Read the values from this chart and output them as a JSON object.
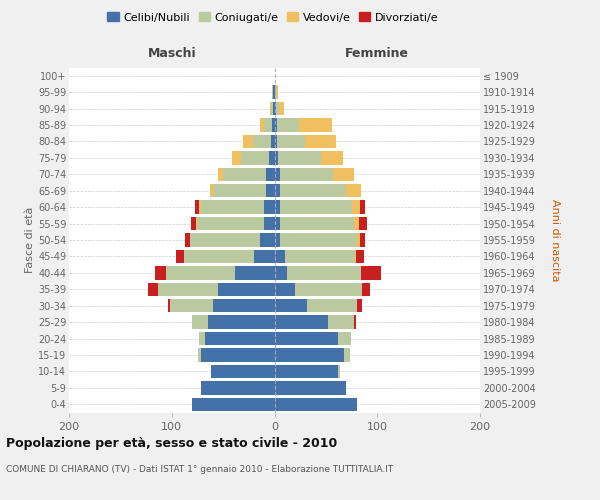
{
  "age_groups": [
    "0-4",
    "5-9",
    "10-14",
    "15-19",
    "20-24",
    "25-29",
    "30-34",
    "35-39",
    "40-44",
    "45-49",
    "50-54",
    "55-59",
    "60-64",
    "65-69",
    "70-74",
    "75-79",
    "80-84",
    "85-89",
    "90-94",
    "95-99",
    "100+"
  ],
  "birth_years": [
    "2005-2009",
    "2000-2004",
    "1995-1999",
    "1990-1994",
    "1985-1989",
    "1980-1984",
    "1975-1979",
    "1970-1974",
    "1965-1969",
    "1960-1964",
    "1955-1959",
    "1950-1954",
    "1945-1949",
    "1940-1944",
    "1935-1939",
    "1930-1934",
    "1925-1929",
    "1920-1924",
    "1915-1919",
    "1910-1914",
    "≤ 1909"
  ],
  "maschi": {
    "celibi": [
      80,
      72,
      62,
      72,
      68,
      65,
      60,
      55,
      38,
      20,
      14,
      10,
      10,
      8,
      8,
      5,
      3,
      2,
      1,
      1,
      0
    ],
    "coniugati": [
      0,
      0,
      0,
      2,
      5,
      15,
      42,
      58,
      68,
      68,
      68,
      65,
      62,
      52,
      42,
      28,
      18,
      8,
      2,
      1,
      0
    ],
    "vedovi": [
      0,
      0,
      0,
      0,
      0,
      0,
      0,
      0,
      0,
      0,
      0,
      1,
      1,
      3,
      5,
      8,
      10,
      4,
      1,
      0,
      0
    ],
    "divorziati": [
      0,
      0,
      0,
      0,
      0,
      0,
      2,
      10,
      10,
      8,
      5,
      5,
      4,
      0,
      0,
      0,
      0,
      0,
      0,
      0,
      0
    ]
  },
  "femmine": {
    "nubili": [
      80,
      70,
      62,
      68,
      62,
      52,
      32,
      20,
      12,
      10,
      5,
      5,
      5,
      5,
      5,
      3,
      2,
      2,
      1,
      0,
      0
    ],
    "coniugate": [
      0,
      0,
      2,
      5,
      12,
      25,
      48,
      65,
      72,
      68,
      75,
      72,
      70,
      65,
      52,
      42,
      28,
      22,
      3,
      1,
      0
    ],
    "vedove": [
      0,
      0,
      0,
      0,
      0,
      0,
      0,
      0,
      0,
      1,
      3,
      5,
      8,
      14,
      20,
      22,
      30,
      32,
      5,
      2,
      0
    ],
    "divorziate": [
      0,
      0,
      0,
      0,
      0,
      2,
      5,
      8,
      20,
      8,
      5,
      8,
      5,
      0,
      0,
      0,
      0,
      0,
      0,
      0,
      0
    ]
  },
  "colors": {
    "celibi": "#4472a8",
    "coniugati": "#bbc9a0",
    "vedovi": "#f0c060",
    "divorziati": "#c82020"
  },
  "xlim": 200,
  "title": "Popolazione per età, sesso e stato civile - 2010",
  "subtitle": "COMUNE DI CHIARANO (TV) - Dati ISTAT 1° gennaio 2010 - Elaborazione TUTTITALIA.IT",
  "ylabel_left": "Fasce di età",
  "ylabel_right": "Anni di nascita",
  "label_maschi": "Maschi",
  "label_femmine": "Femmine",
  "bg_color": "#f0f0f0",
  "plot_bg_color": "#ffffff",
  "legend_labels": [
    "Celibi/Nubili",
    "Coniugati/e",
    "Vedovi/e",
    "Divorziati/e"
  ]
}
